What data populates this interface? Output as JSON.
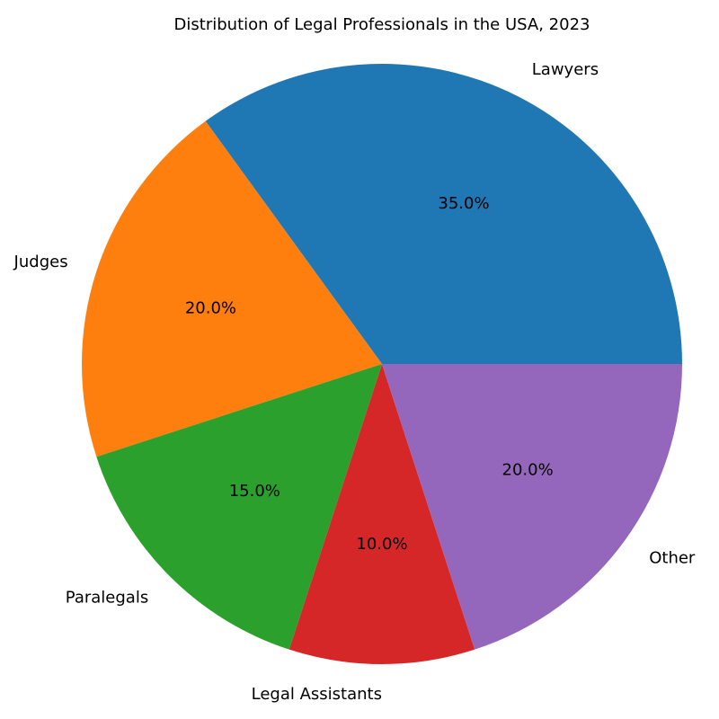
{
  "chart_data": {
    "type": "pie",
    "title": "Distribution of Legal Professionals in the USA, 2023",
    "categories": [
      "Lawyers",
      "Judges",
      "Paralegals",
      "Legal Assistants",
      "Other"
    ],
    "values": [
      35,
      20,
      15,
      10,
      20
    ],
    "percent_labels": [
      "35.0%",
      "20.0%",
      "15.0%",
      "10.0%",
      "20.0%"
    ],
    "colors": [
      "#1f77b4",
      "#ff7f0e",
      "#2ca02c",
      "#d62728",
      "#9467bd"
    ],
    "start_angle_deg": 0,
    "direction": "counterclockwise",
    "legend": "none"
  }
}
